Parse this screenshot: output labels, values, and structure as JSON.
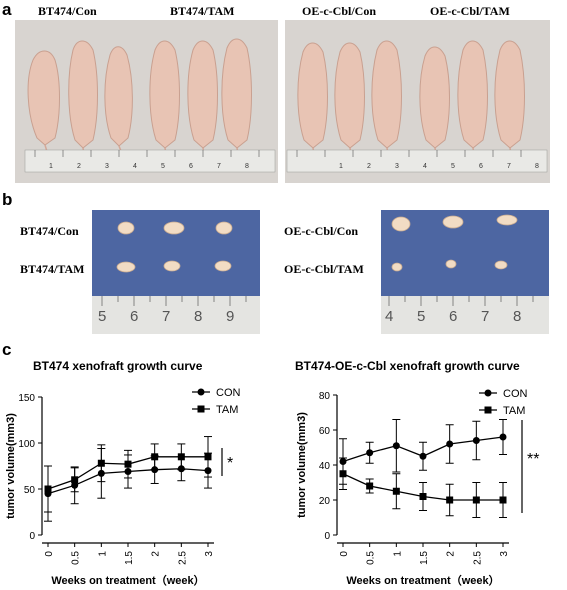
{
  "panels": {
    "a": {
      "letter": "a",
      "labels": [
        "BT474/Con",
        "BT474/TAM",
        "OE-c-Cbl/Con",
        "OE-c-Cbl/TAM"
      ]
    },
    "b": {
      "letter": "b",
      "left_labels": [
        "BT474/Con",
        "BT474/TAM"
      ],
      "right_labels": [
        "OE-c-Cbl/Con",
        "OE-c-Cbl/TAM"
      ],
      "left_ruler_numbers": [
        "5",
        "6",
        "7",
        "8",
        "9"
      ],
      "right_ruler_numbers": [
        "4",
        "5",
        "6",
        "7",
        "8"
      ]
    },
    "c": {
      "letter": "c"
    }
  },
  "colors": {
    "skin": "#e9c9bb",
    "ruler": "#e6e6e3",
    "blue_cloth": "#4f6aa6",
    "background_photo": "#d7d3cf"
  },
  "chart_data": [
    {
      "type": "line",
      "title": "BT474 xenofraft growth curve",
      "xlabel": "Weeks on treatment（week）",
      "ylabel": "tumor volume(mm3)",
      "x": [
        0,
        0.5,
        1,
        1.5,
        2,
        2.5,
        3
      ],
      "x_tick_labels": [
        "0",
        "0.5",
        "1",
        "1.5",
        "2",
        "2.5",
        "3"
      ],
      "ylim": [
        0,
        150
      ],
      "y_ticks": [
        0,
        50,
        100,
        150
      ],
      "series": [
        {
          "name": "CON",
          "marker": "circle",
          "values": [
            45,
            54,
            67,
            69,
            71,
            72,
            70
          ],
          "errors": [
            30,
            20,
            27,
            18,
            15,
            13,
            19
          ]
        },
        {
          "name": "TAM",
          "marker": "square",
          "values": [
            50,
            60,
            78,
            77,
            85,
            85,
            85
          ],
          "errors": [
            25,
            13,
            20,
            15,
            14,
            14,
            22
          ]
        }
      ],
      "significance": "*",
      "legend": "top-right"
    },
    {
      "type": "line",
      "title": "BT474-OE-c-Cbl xenofraft growth curve",
      "xlabel": "Weeks on treatment（week）",
      "ylabel": "tumor volume(mm3)",
      "x": [
        0,
        0.5,
        1,
        1.5,
        2,
        2.5,
        3
      ],
      "x_tick_labels": [
        "0",
        "0.5",
        "1",
        "1.5",
        "2",
        "2.5",
        "3"
      ],
      "ylim": [
        0,
        80
      ],
      "y_ticks": [
        0,
        20,
        40,
        60,
        80
      ],
      "series": [
        {
          "name": "CON",
          "marker": "circle",
          "values": [
            42,
            47,
            51,
            45,
            52,
            54,
            56
          ],
          "errors": [
            13,
            6,
            15,
            8,
            11,
            11,
            10
          ]
        },
        {
          "name": "TAM",
          "marker": "square",
          "values": [
            35,
            28,
            25,
            22,
            20,
            20,
            20
          ],
          "errors": [
            9,
            4,
            10,
            8,
            9,
            10,
            10
          ]
        }
      ],
      "significance": "**",
      "legend": "top-right"
    }
  ]
}
